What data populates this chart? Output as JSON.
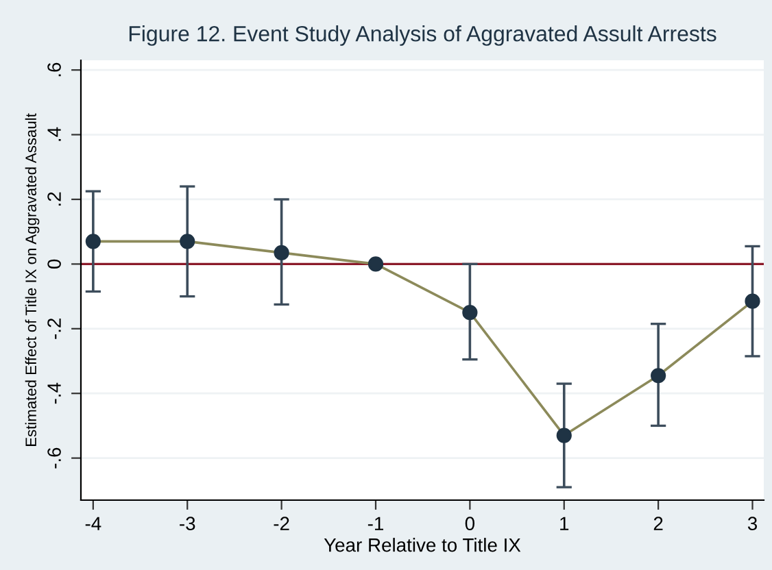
{
  "chart_data": {
    "type": "line",
    "title": "Figure 12. Event Study Analysis of Aggravated Assult Arrests",
    "xlabel": "Year Relative to Title IX",
    "ylabel": "Estimated Effect of Title IX on Aggravated Assault",
    "x": [
      -4,
      -3,
      -2,
      -1,
      0,
      1,
      2,
      3
    ],
    "series": [
      {
        "color": "#8c8a5a",
        "values": [
          0.07,
          0.07,
          0.035,
          0,
          -0.15,
          -0.53,
          -0.345,
          -0.115
        ],
        "errors": [
          [
            -0.085,
            0.225
          ],
          [
            -0.1,
            0.24
          ],
          [
            -0.125,
            0.2
          ],
          null,
          [
            -0.295,
            0
          ],
          [
            -0.69,
            -0.37
          ],
          [
            -0.5,
            -0.185
          ],
          [
            -0.285,
            0.055
          ]
        ]
      }
    ],
    "marker": "circle",
    "xlim": [
      -4.13,
      3.12
    ],
    "xticks": [
      -4,
      -3,
      -2,
      -1,
      0,
      1,
      2,
      3
    ],
    "ylim": [
      -0.73,
      0.63
    ],
    "yticks": [
      {
        "value": -0.6,
        "label": "-.6"
      },
      {
        "value": -0.4,
        "label": "-.4"
      },
      {
        "value": -0.2,
        "label": "-.2"
      },
      {
        "value": 0,
        "label": "0"
      },
      {
        "value": 0.2,
        "label": ".2"
      },
      {
        "value": 0.4,
        "label": ".4"
      },
      {
        "value": 0.6,
        "label": ".6"
      }
    ],
    "ref_lines": [
      {
        "axis": "y",
        "value": 0,
        "color": "#8b1a2a"
      }
    ],
    "grid": "y"
  }
}
